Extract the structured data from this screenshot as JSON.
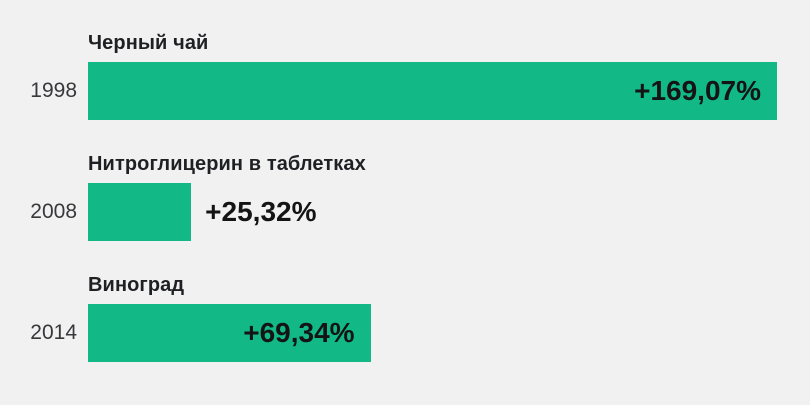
{
  "colors": {
    "background": "#f1f1f2",
    "bar": "#12b886",
    "label_text": "#1f2023",
    "year_text": "#38383b",
    "value_text": "#141415"
  },
  "chart_data": {
    "type": "bar",
    "orientation": "horizontal",
    "title": "",
    "xlabel": "",
    "ylabel": "",
    "xlim": [
      0,
      169.07
    ],
    "grid": false,
    "legend": false,
    "categories": [
      "1998",
      "2008",
      "2014"
    ],
    "rows": [
      {
        "year": "1998",
        "label": "Черный чай",
        "value": 169.07,
        "value_label": "+169,07%",
        "value_position": "inside"
      },
      {
        "year": "2008",
        "label": "Нитроглицерин в таблетках",
        "value": 25.32,
        "value_label": "+25,32%",
        "value_position": "outside"
      },
      {
        "year": "2014",
        "label": "Виноград",
        "value": 69.34,
        "value_label": "+69,34%",
        "value_position": "inside"
      }
    ]
  }
}
